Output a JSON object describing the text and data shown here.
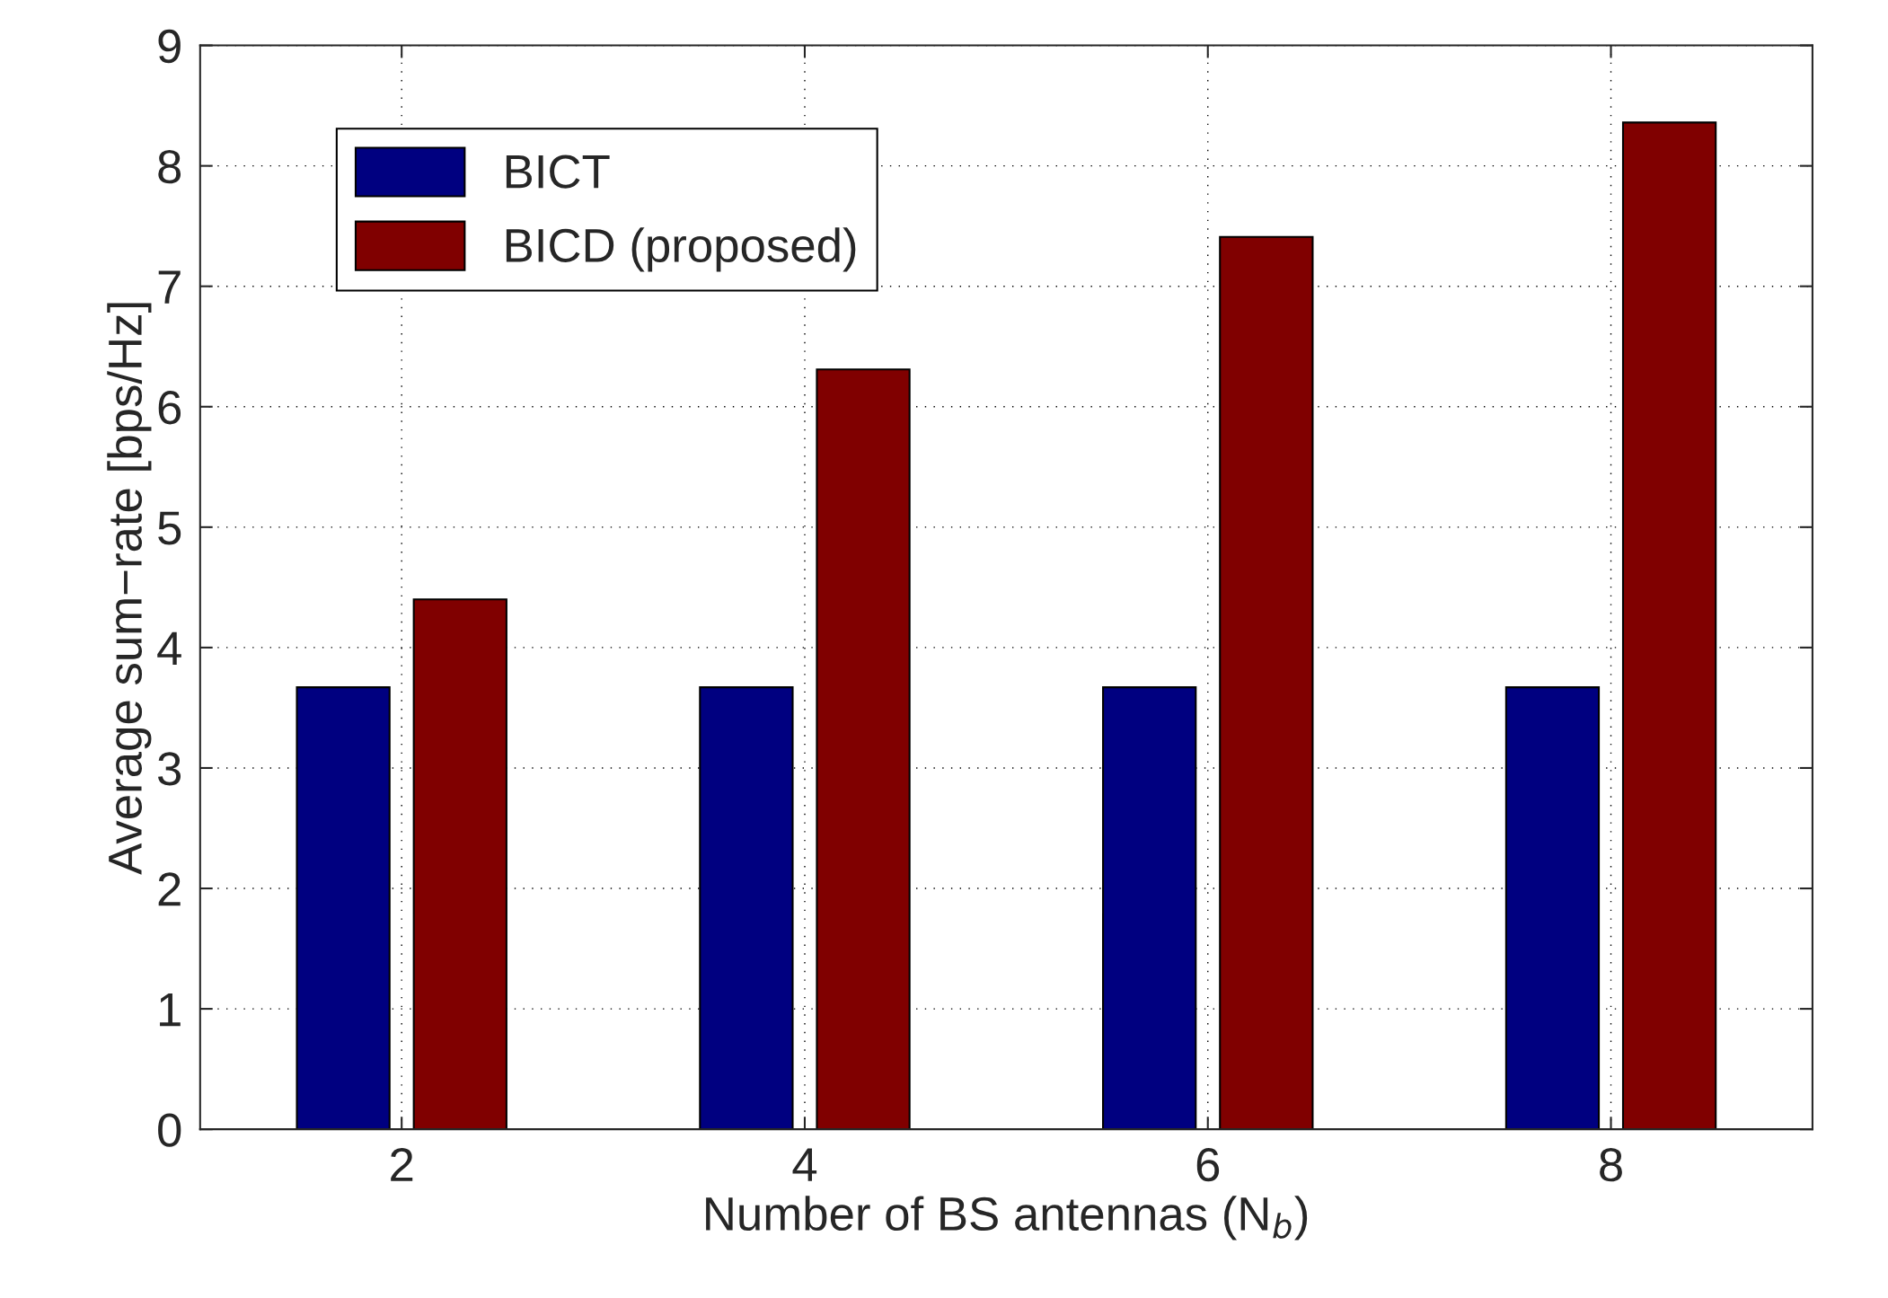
{
  "chart_data": {
    "type": "bar",
    "xlabel": "Number of BS antennas (N$_{b}$)",
    "ylabel": "Average sum−rate [bps/Hz]",
    "x": [
      2,
      4,
      6,
      8
    ],
    "series": [
      {
        "name": "BICT",
        "color": "#000080",
        "values": [
          3.67,
          3.67,
          3.67,
          3.67
        ]
      },
      {
        "name": "BICD (proposed)",
        "color": "#800000",
        "values": [
          4.4,
          6.31,
          7.41,
          8.36
        ]
      }
    ],
    "xlim": [
      1,
      9
    ],
    "xticks": [
      2,
      4,
      6,
      8
    ],
    "ylim": [
      0,
      9
    ],
    "yticks": [
      0,
      1,
      2,
      3,
      4,
      5,
      6,
      7,
      8,
      9
    ],
    "grid": true,
    "legend": "top left"
  }
}
